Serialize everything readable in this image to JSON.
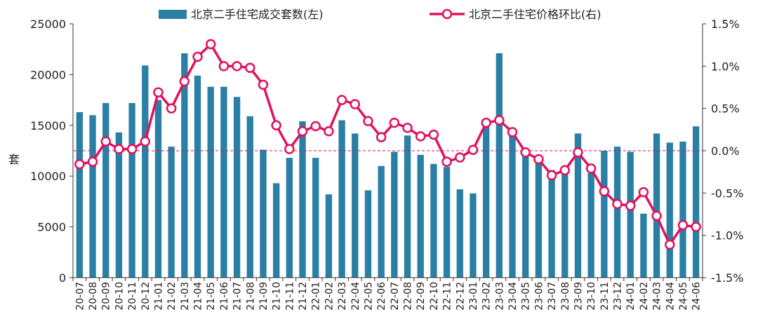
{
  "chart_data": {
    "type": "bar+line",
    "categories": [
      "20-07",
      "20-08",
      "20-09",
      "20-10",
      "20-11",
      "20-12",
      "21-01",
      "21-02",
      "21-03",
      "21-04",
      "21-05",
      "21-06",
      "21-07",
      "21-08",
      "21-09",
      "21-10",
      "21-11",
      "21-12",
      "22-01",
      "22-02",
      "22-03",
      "22-04",
      "22-05",
      "22-06",
      "22-07",
      "22-08",
      "22-09",
      "22-10",
      "22-11",
      "22-12",
      "23-01",
      "23-02",
      "23-03",
      "23-04",
      "23-05",
      "23-06",
      "23-07",
      "23-08",
      "23-09",
      "23-10",
      "23-11",
      "23-12",
      "24-01",
      "24-02",
      "24-03",
      "24-04",
      "24-05",
      "24-06"
    ],
    "series": [
      {
        "name": "北京二手住宅成交套数(左)",
        "axis": "left",
        "kind": "bar",
        "color": "#2a7fa4",
        "values": [
          16300,
          16000,
          17200,
          14300,
          17200,
          20900,
          17500,
          12900,
          22100,
          19900,
          18800,
          18800,
          17800,
          15900,
          12600,
          9300,
          11800,
          15400,
          11800,
          8200,
          15500,
          14200,
          8600,
          11000,
          12400,
          14000,
          12100,
          11200,
          10900,
          8700,
          8300,
          15000,
          22100,
          14000,
          12400,
          11500,
          10600,
          10500,
          14200,
          10300,
          12500,
          12900,
          12400,
          6300,
          14200,
          13300,
          13400,
          14900
        ]
      },
      {
        "name": "北京二手住宅价格环比(右)",
        "axis": "right",
        "kind": "line",
        "color": "#e0115f",
        "values": [
          -0.16,
          -0.13,
          0.11,
          0.02,
          0.02,
          0.11,
          0.69,
          0.5,
          0.82,
          1.11,
          1.26,
          1.0,
          1.0,
          0.98,
          0.78,
          0.3,
          0.02,
          0.23,
          0.29,
          0.23,
          0.6,
          0.55,
          0.35,
          0.16,
          0.33,
          0.27,
          0.17,
          0.19,
          -0.13,
          -0.08,
          0.01,
          0.33,
          0.36,
          0.22,
          -0.02,
          -0.1,
          -0.29,
          -0.23,
          -0.02,
          -0.21,
          -0.48,
          -0.63,
          -0.65,
          -0.49,
          -0.77,
          -1.11,
          -0.88,
          -0.9
        ]
      }
    ],
    "ylabel": "套",
    "ylim": [
      0,
      25000
    ],
    "yticks": [
      0,
      5000,
      10000,
      15000,
      20000,
      25000
    ],
    "y2lim": [
      -1.5,
      1.5
    ],
    "y2ticks": [
      "-1.5%",
      "-1.0%",
      "-0.5%",
      "0.0%",
      "0.5%",
      "1.0%",
      "1.5%"
    ],
    "zero_reference_line": "dashed",
    "grid": false,
    "legend_position": "top"
  }
}
